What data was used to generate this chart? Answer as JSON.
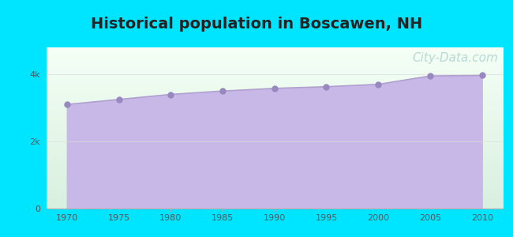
{
  "title": "Historical population in Boscawen, NH",
  "title_fontsize": 14,
  "title_fontweight": "bold",
  "years": [
    1970,
    1975,
    1980,
    1985,
    1990,
    1995,
    2000,
    2005,
    2010
  ],
  "population": [
    3100,
    3250,
    3400,
    3500,
    3580,
    3630,
    3700,
    3950,
    3965
  ],
  "line_color": "#b0a0d0",
  "fill_color": "#c8b8e8",
  "fill_alpha": 1.0,
  "marker_color": "#9888c0",
  "marker_size": 25,
  "background_outer": "#00e5ff",
  "plot_bg_top": "#f5fff5",
  "plot_bg_bottom": "#d8f0e0",
  "xlim": [
    1968,
    2012
  ],
  "ylim": [
    0,
    4800
  ],
  "yticks": [
    0,
    2000,
    4000
  ],
  "ytick_labels": [
    "0",
    "2k",
    "4k"
  ],
  "xticks": [
    1970,
    1975,
    1980,
    1985,
    1990,
    1995,
    2000,
    2005,
    2010
  ],
  "watermark": "City-Data.com",
  "watermark_color": "#88bbbb",
  "watermark_alpha": 0.55,
  "watermark_fontsize": 11,
  "grid_color": "#dddddd",
  "tick_color": "#555555",
  "tick_fontsize": 8,
  "spine_color": "#aaaaaa"
}
